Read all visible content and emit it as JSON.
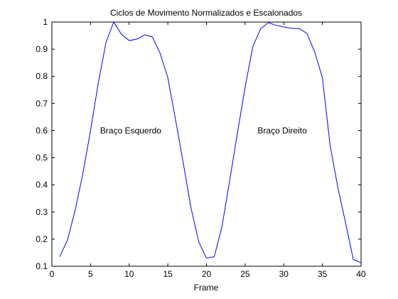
{
  "chart_data": {
    "type": "line",
    "title": "Ciclos de Movimento Normalizados e Escalonados",
    "xlabel": "Frame",
    "ylabel": "",
    "xlim": [
      0,
      40
    ],
    "ylim": [
      0.1,
      1
    ],
    "x_ticks": [
      0,
      5,
      10,
      15,
      20,
      25,
      30,
      35,
      40
    ],
    "y_ticks": [
      0.1,
      0.2,
      0.3,
      0.4,
      0.5,
      0.6,
      0.7,
      0.8,
      0.9,
      1
    ],
    "y_tick_labels": [
      "0.1",
      "0.2",
      "0.3",
      "0.4",
      "0.5",
      "0.6",
      "0.7",
      "0.8",
      "0.9",
      "1"
    ],
    "grid": false,
    "line_color": "#0000ff",
    "series": [
      {
        "x": [
          1,
          2,
          3,
          4,
          5,
          6,
          7,
          8,
          9,
          10,
          11,
          12,
          13,
          14,
          15,
          16,
          17,
          18,
          19,
          20,
          21,
          22,
          23,
          24,
          25,
          26,
          27,
          28,
          29,
          30,
          31,
          32,
          33,
          34,
          35,
          36,
          37,
          38,
          39,
          40
        ],
        "values": [
          0.135,
          0.195,
          0.305,
          0.44,
          0.6,
          0.775,
          0.925,
          1.0,
          0.955,
          0.932,
          0.937,
          0.953,
          0.945,
          0.885,
          0.795,
          0.64,
          0.48,
          0.315,
          0.19,
          0.13,
          0.135,
          0.245,
          0.415,
          0.59,
          0.76,
          0.91,
          0.975,
          0.998,
          0.988,
          0.982,
          0.977,
          0.976,
          0.958,
          0.89,
          0.795,
          0.545,
          0.39,
          0.26,
          0.125,
          0.113
        ]
      }
    ],
    "annotations": [
      {
        "text": "Braço Esquerdo",
        "x": 10.2,
        "y": 0.59
      },
      {
        "text": "Braço Direito",
        "x": 29.8,
        "y": 0.59
      }
    ]
  }
}
